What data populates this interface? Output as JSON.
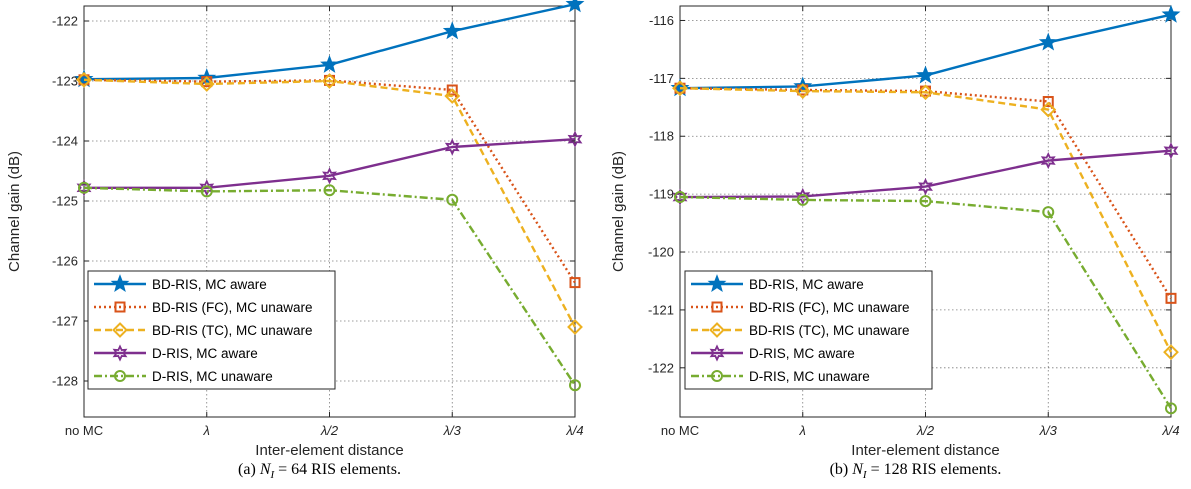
{
  "chart_data": [
    {
      "type": "line",
      "caption_tag": "(a)",
      "caption_sym": "N",
      "caption_sub": "I",
      "caption_rest": "= 64 RIS elements.",
      "xlabel": "Inter-element distance",
      "ylabel": "Channel gain (dB)",
      "categories": [
        "no MC",
        "λ",
        "λ/2",
        "λ/3",
        "λ/4"
      ],
      "ylim": [
        -128.6,
        -121.75
      ],
      "yticks": [
        -128,
        -127,
        -126,
        -125,
        -124,
        -123,
        -122
      ],
      "grid": true,
      "legend_position": "bottom-left",
      "series": [
        {
          "name": "BD-RIS, MC aware",
          "color": "#0072BD",
          "dash": "solid",
          "marker": "star",
          "values": [
            -122.97,
            -122.95,
            -122.73,
            -122.17,
            -121.72
          ]
        },
        {
          "name": "BD-RIS (FC), MC unaware",
          "color": "#D95319",
          "dash": "dot",
          "marker": "square",
          "values": [
            -122.98,
            -123.01,
            -122.99,
            -123.15,
            -126.36
          ]
        },
        {
          "name": "BD-RIS (TC), MC unaware",
          "color": "#EDB120",
          "dash": "dash",
          "marker": "diamond",
          "values": [
            -122.98,
            -123.05,
            -123.0,
            -123.25,
            -127.1
          ]
        },
        {
          "name": "D-RIS, MC aware",
          "color": "#7E2F8E",
          "dash": "solid",
          "marker": "hexagram",
          "values": [
            -124.78,
            -124.78,
            -124.58,
            -124.1,
            -123.97
          ]
        },
        {
          "name": "D-RIS, MC unaware",
          "color": "#77AC30",
          "dash": "dashdot",
          "marker": "circle",
          "values": [
            -124.78,
            -124.84,
            -124.82,
            -124.98,
            -128.07
          ]
        }
      ]
    },
    {
      "type": "line",
      "caption_tag": "(b)",
      "caption_sym": "N",
      "caption_sub": "I",
      "caption_rest": "= 128 RIS elements.",
      "xlabel": "Inter-element distance",
      "ylabel": "Channel gain (dB)",
      "categories": [
        "no MC",
        "λ",
        "λ/2",
        "λ/3",
        "λ/4"
      ],
      "ylim": [
        -122.85,
        -115.75
      ],
      "yticks": [
        -122,
        -121,
        -120,
        -119,
        -118,
        -117,
        -116
      ],
      "grid": true,
      "legend_position": "bottom-left",
      "series": [
        {
          "name": "BD-RIS, MC aware",
          "color": "#0072BD",
          "dash": "solid",
          "marker": "star",
          "values": [
            -117.17,
            -117.14,
            -116.95,
            -116.38,
            -115.9
          ]
        },
        {
          "name": "BD-RIS (FC), MC unaware",
          "color": "#D95319",
          "dash": "dot",
          "marker": "square",
          "values": [
            -117.17,
            -117.2,
            -117.22,
            -117.4,
            -120.8
          ]
        },
        {
          "name": "BD-RIS (TC), MC unaware",
          "color": "#EDB120",
          "dash": "dash",
          "marker": "diamond",
          "values": [
            -117.17,
            -117.22,
            -117.24,
            -117.54,
            -121.73
          ]
        },
        {
          "name": "D-RIS, MC aware",
          "color": "#7E2F8E",
          "dash": "solid",
          "marker": "hexagram",
          "values": [
            -119.05,
            -119.04,
            -118.87,
            -118.42,
            -118.25
          ]
        },
        {
          "name": "D-RIS, MC unaware",
          "color": "#77AC30",
          "dash": "dashdot",
          "marker": "circle",
          "values": [
            -119.05,
            -119.1,
            -119.12,
            -119.31,
            -122.7
          ]
        }
      ]
    }
  ]
}
